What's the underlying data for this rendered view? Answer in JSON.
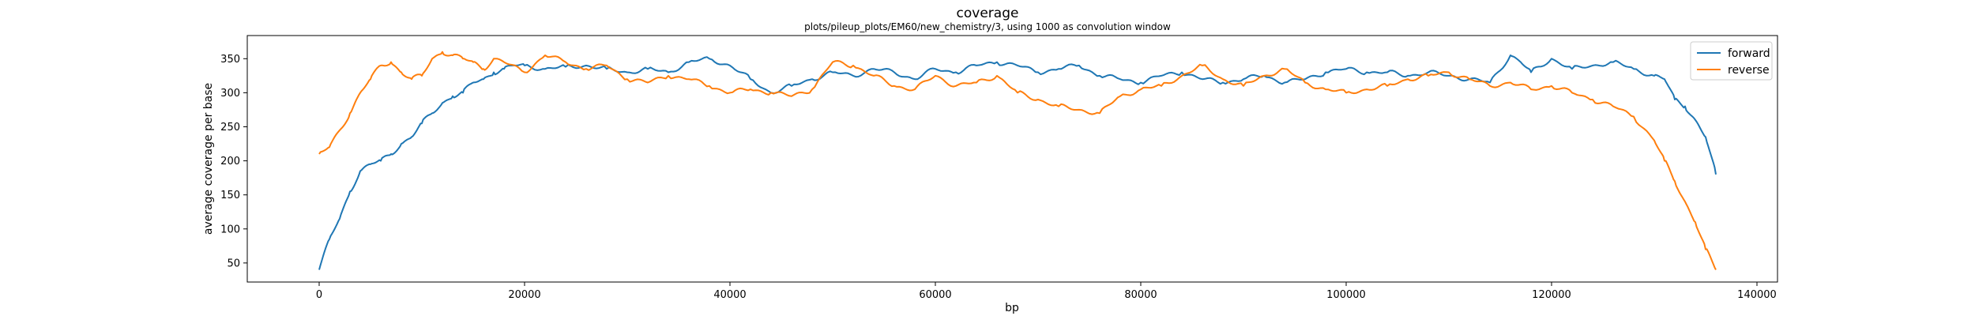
{
  "chart_data": {
    "type": "line",
    "title": "coverage",
    "subtitle": "plots/pileup_plots/EM60/new_chemistry/3, using 1000 as convolution window",
    "xlabel": "bp",
    "ylabel": "average coverage per base",
    "xlim": [
      -7000,
      142000
    ],
    "ylim": [
      22,
      384
    ],
    "xticks": [
      0,
      20000,
      40000,
      60000,
      80000,
      100000,
      120000,
      140000
    ],
    "xtick_labels": [
      "0",
      "20000",
      "40000",
      "60000",
      "80000",
      "100000",
      "120000",
      "140000"
    ],
    "yticks": [
      50,
      100,
      150,
      200,
      250,
      300,
      350
    ],
    "ytick_labels": [
      "50",
      "100",
      "150",
      "200",
      "250",
      "300",
      "350"
    ],
    "grid": false,
    "legend_position": "top-right",
    "series": [
      {
        "name": "forward",
        "color": "#1f77b4",
        "x": [
          0,
          1000,
          2000,
          3000,
          4000,
          5000,
          6000,
          7000,
          8000,
          9000,
          10000,
          11000,
          12000,
          13000,
          14000,
          15000,
          16000,
          17000,
          18000,
          19000,
          20000,
          22000,
          24000,
          26000,
          28000,
          30000,
          32000,
          34000,
          36000,
          38000,
          40000,
          42000,
          44000,
          46000,
          48000,
          50000,
          52000,
          54000,
          56000,
          58000,
          60000,
          62000,
          64000,
          66000,
          68000,
          70000,
          72000,
          74000,
          76000,
          78000,
          80000,
          82000,
          84000,
          86000,
          88000,
          90000,
          92000,
          94000,
          96000,
          98000,
          100000,
          102000,
          104000,
          106000,
          108000,
          110000,
          112000,
          114000,
          116000,
          117000,
          118000,
          120000,
          122000,
          124000,
          126000,
          128000,
          130000,
          131000,
          132000,
          133000,
          134000,
          135000,
          136000
        ],
        "y": [
          40,
          85,
          115,
          155,
          185,
          195,
          200,
          210,
          225,
          235,
          255,
          270,
          285,
          295,
          300,
          315,
          320,
          330,
          335,
          340,
          340,
          335,
          338,
          340,
          335,
          330,
          335,
          330,
          345,
          350,
          340,
          320,
          300,
          310,
          320,
          330,
          325,
          335,
          330,
          320,
          335,
          330,
          340,
          345,
          340,
          330,
          335,
          340,
          325,
          320,
          315,
          325,
          330,
          320,
          315,
          320,
          325,
          315,
          320,
          330,
          335,
          330,
          330,
          325,
          330,
          325,
          320,
          315,
          355,
          345,
          330,
          350,
          335,
          340,
          345,
          335,
          325,
          320,
          290,
          280,
          260,
          235,
          180
        ]
      },
      {
        "name": "reverse",
        "color": "#ff7f0e",
        "x": [
          0,
          1000,
          2000,
          3000,
          4000,
          5000,
          6000,
          7000,
          8000,
          9000,
          10000,
          11000,
          12000,
          13000,
          14000,
          15000,
          16000,
          17000,
          18000,
          20000,
          22000,
          24000,
          26000,
          28000,
          30000,
          32000,
          34000,
          36000,
          38000,
          40000,
          42000,
          44000,
          46000,
          48000,
          50000,
          52000,
          54000,
          56000,
          58000,
          60000,
          62000,
          64000,
          66000,
          68000,
          70000,
          72000,
          74000,
          76000,
          78000,
          80000,
          82000,
          84000,
          86000,
          88000,
          90000,
          92000,
          94000,
          96000,
          98000,
          100000,
          102000,
          104000,
          106000,
          108000,
          110000,
          112000,
          114000,
          116000,
          118000,
          120000,
          122000,
          124000,
          126000,
          128000,
          130000,
          131000,
          132000,
          133000,
          134000,
          135000,
          136000
        ],
        "y": [
          210,
          220,
          245,
          270,
          300,
          320,
          340,
          345,
          330,
          320,
          325,
          350,
          360,
          355,
          350,
          345,
          335,
          350,
          345,
          330,
          355,
          345,
          335,
          340,
          320,
          315,
          325,
          320,
          310,
          300,
          305,
          300,
          295,
          305,
          345,
          340,
          325,
          310,
          305,
          325,
          310,
          315,
          325,
          300,
          290,
          280,
          275,
          270,
          295,
          305,
          310,
          325,
          340,
          320,
          310,
          325,
          335,
          315,
          305,
          300,
          305,
          310,
          320,
          325,
          330,
          320,
          310,
          315,
          305,
          310,
          300,
          290,
          280,
          265,
          230,
          200,
          170,
          140,
          110,
          70,
          40
        ]
      }
    ]
  }
}
